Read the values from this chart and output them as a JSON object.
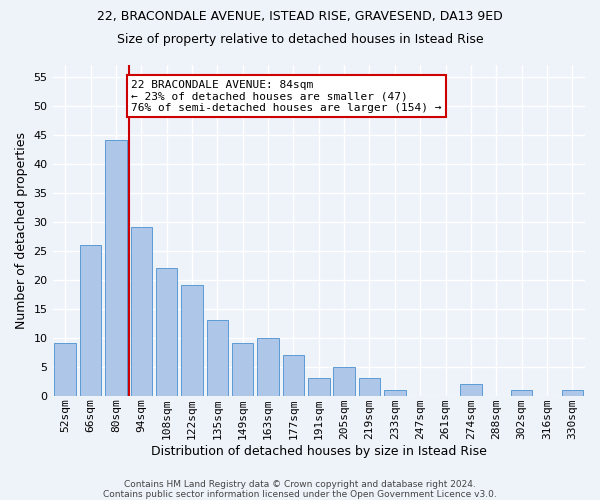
{
  "title1": "22, BRACONDALE AVENUE, ISTEAD RISE, GRAVESEND, DA13 9ED",
  "title2": "Size of property relative to detached houses in Istead Rise",
  "xlabel": "Distribution of detached houses by size in Istead Rise",
  "ylabel": "Number of detached properties",
  "categories": [
    "52sqm",
    "66sqm",
    "80sqm",
    "94sqm",
    "108sqm",
    "122sqm",
    "135sqm",
    "149sqm",
    "163sqm",
    "177sqm",
    "191sqm",
    "205sqm",
    "219sqm",
    "233sqm",
    "247sqm",
    "261sqm",
    "274sqm",
    "288sqm",
    "302sqm",
    "316sqm",
    "330sqm"
  ],
  "values": [
    9,
    26,
    44,
    29,
    22,
    19,
    13,
    9,
    10,
    7,
    3,
    5,
    3,
    1,
    0,
    0,
    2,
    0,
    1,
    0,
    1
  ],
  "bar_color": "#aec6e8",
  "bar_edge_color": "#5b9bd5",
  "vline_color": "#cc0000",
  "vline_x": 2.5,
  "ylim": [
    0,
    57
  ],
  "yticks": [
    0,
    5,
    10,
    15,
    20,
    25,
    30,
    35,
    40,
    45,
    50,
    55
  ],
  "annotation_text": "22 BRACONDALE AVENUE: 84sqm\n← 23% of detached houses are smaller (47)\n76% of semi-detached houses are larger (154) →",
  "annotation_box_color": "#ffffff",
  "annotation_box_edge": "#cc0000",
  "footer1": "Contains HM Land Registry data © Crown copyright and database right 2024.",
  "footer2": "Contains public sector information licensed under the Open Government Licence v3.0.",
  "background_color": "#eef2f9",
  "grid_color": "#ffffff",
  "title1_fontsize": 9,
  "title2_fontsize": 9,
  "ylabel_fontsize": 9,
  "xlabel_fontsize": 9,
  "tick_fontsize": 8,
  "ann_fontsize": 8
}
